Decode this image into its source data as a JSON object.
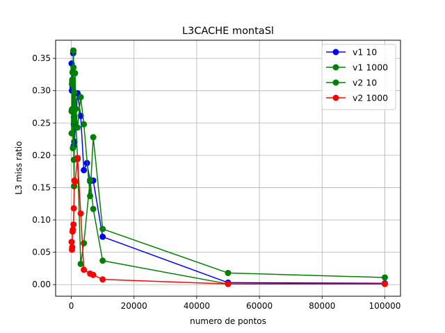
{
  "chart_data": {
    "type": "line",
    "title": "L3CACHE montaSl",
    "xlabel": "numero de pontos",
    "ylabel": "L3 miss ratio",
    "xlim": [
      -5000,
      105000
    ],
    "ylim": [
      -0.018,
      0.378
    ],
    "x_ticks": [
      0,
      20000,
      40000,
      60000,
      80000,
      100000
    ],
    "y_ticks": [
      0.0,
      0.05,
      0.1,
      0.15,
      0.2,
      0.25,
      0.3,
      0.35
    ],
    "x_tick_labels": [
      "0",
      "20000",
      "40000",
      "60000",
      "80000",
      "100000"
    ],
    "y_tick_labels": [
      "0.00",
      "0.05",
      "0.10",
      "0.15",
      "0.20",
      "0.25",
      "0.30",
      "0.35"
    ],
    "grid": true,
    "legend_position": "top-right",
    "series": [
      {
        "name": "v1 10",
        "color": "#0000ff",
        "points": [
          [
            100,
            0.342
          ],
          [
            200,
            0.3
          ],
          [
            300,
            0.315
          ],
          [
            400,
            0.305
          ],
          [
            500,
            0.272
          ],
          [
            600,
            0.358
          ],
          [
            700,
            0.214
          ],
          [
            800,
            0.248
          ],
          [
            900,
            0.252
          ],
          [
            1000,
            0.221
          ],
          [
            2000,
            0.296
          ],
          [
            3000,
            0.261
          ],
          [
            4000,
            0.177
          ],
          [
            5000,
            0.188
          ],
          [
            6000,
            0.16
          ],
          [
            7000,
            0.161
          ],
          [
            10000,
            0.074
          ],
          [
            50000,
            0.003
          ],
          [
            100000,
            0.002
          ]
        ]
      },
      {
        "name": "v1 1000",
        "color": "#008000",
        "points": [
          [
            100,
            0.234
          ],
          [
            200,
            0.31
          ],
          [
            300,
            0.317
          ],
          [
            400,
            0.328
          ],
          [
            500,
            0.211
          ],
          [
            600,
            0.362
          ],
          [
            700,
            0.336
          ],
          [
            800,
            0.193
          ],
          [
            900,
            0.152
          ],
          [
            1000,
            0.284
          ],
          [
            1200,
            0.327
          ],
          [
            1500,
            0.272
          ],
          [
            2000,
            0.243
          ],
          [
            3000,
            0.29
          ],
          [
            4000,
            0.248
          ],
          [
            6000,
            0.137
          ],
          [
            7000,
            0.228
          ],
          [
            10000,
            0.086
          ],
          [
            50000,
            0.018
          ],
          [
            100000,
            0.011
          ]
        ]
      },
      {
        "name": "v2 10",
        "color": "#008000",
        "points": [
          [
            100,
            0.268
          ],
          [
            200,
            0.271
          ],
          [
            300,
            0.312
          ],
          [
            500,
            0.33
          ],
          [
            700,
            0.362
          ],
          [
            800,
            0.259
          ],
          [
            900,
            0.253
          ],
          [
            1000,
            0.297
          ],
          [
            2000,
            0.194
          ],
          [
            3000,
            0.032
          ],
          [
            4000,
            0.064
          ],
          [
            6000,
            0.162
          ],
          [
            7000,
            0.117
          ],
          [
            10000,
            0.037
          ],
          [
            50000,
            0.001
          ],
          [
            100000,
            0.001
          ]
        ]
      },
      {
        "name": "v2 1000",
        "color": "#ff0000",
        "points": [
          [
            100,
            0.066
          ],
          [
            200,
            0.054
          ],
          [
            300,
            0.058
          ],
          [
            400,
            0.082
          ],
          [
            500,
            0.085
          ],
          [
            700,
            0.093
          ],
          [
            800,
            0.118
          ],
          [
            1000,
            0.161
          ],
          [
            1200,
            0.159
          ],
          [
            2000,
            0.196
          ],
          [
            3000,
            0.11
          ],
          [
            4000,
            0.023
          ],
          [
            6000,
            0.017
          ],
          [
            7000,
            0.015
          ],
          [
            10000,
            0.008
          ],
          [
            50000,
            0.001
          ],
          [
            100000,
            0.001
          ]
        ]
      }
    ]
  }
}
